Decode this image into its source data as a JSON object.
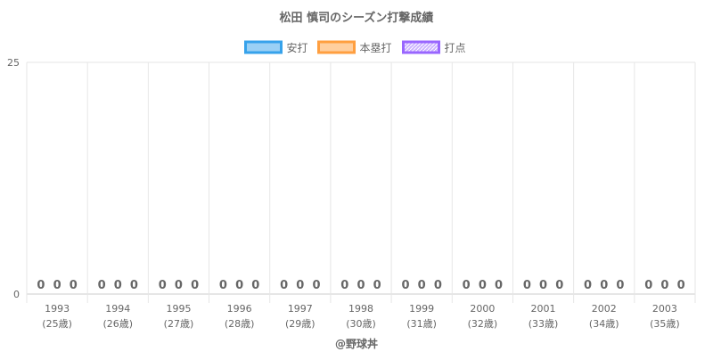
{
  "chart_data": {
    "type": "bar",
    "title": "松田 慎司のシーズン打撃成績",
    "categories": [
      "1993",
      "1994",
      "1995",
      "1996",
      "1997",
      "1998",
      "1999",
      "2000",
      "2001",
      "2002",
      "2003"
    ],
    "category_sublabels": [
      "(25歳)",
      "(26歳)",
      "(27歳)",
      "(28歳)",
      "(29歳)",
      "(30歳)",
      "(31歳)",
      "(32歳)",
      "(33歳)",
      "(34歳)",
      "(35歳)"
    ],
    "series": [
      {
        "name": "安打",
        "values": [
          0,
          0,
          0,
          0,
          0,
          0,
          0,
          0,
          0,
          0,
          0
        ],
        "color": "#36a2eb",
        "fill": "#9ad0f5"
      },
      {
        "name": "本塁打",
        "values": [
          0,
          0,
          0,
          0,
          0,
          0,
          0,
          0,
          0,
          0,
          0
        ],
        "color": "#ff9f40",
        "fill": "#ffcf9f"
      },
      {
        "name": "打点",
        "values": [
          0,
          0,
          0,
          0,
          0,
          0,
          0,
          0,
          0,
          0,
          0
        ],
        "color": "#9966ff",
        "fill": "#ccb2ff",
        "pattern": true
      }
    ],
    "ylim": [
      0,
      25
    ],
    "yticks": [
      "0",
      "25"
    ],
    "grid": true,
    "legend_position": "top",
    "data_labels": true,
    "footer": "@野球丼"
  }
}
